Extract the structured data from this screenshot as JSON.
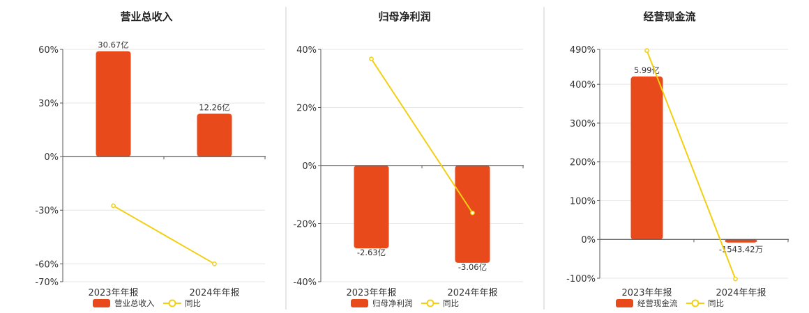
{
  "colors": {
    "bar": "#e84a1b",
    "line": "#f2cf12",
    "grid": "#e6e6e6",
    "axis": "#555555",
    "divider": "#cccccc"
  },
  "chart_data": [
    {
      "type": "bar",
      "title": "营业总收入",
      "categories": [
        "2023年年报",
        "2024年年报"
      ],
      "yticks": [
        "60%",
        "30%",
        "0%",
        "-30%",
        "-60%",
        "-70%"
      ],
      "ylim": [
        -70,
        60
      ],
      "series": [
        {
          "name": "营业总收入",
          "kind": "bar",
          "values": [
            59,
            24
          ],
          "labels": [
            "30.67亿",
            "12.26亿"
          ]
        },
        {
          "name": "同比",
          "kind": "line",
          "values": [
            -27.5,
            -60
          ]
        }
      ]
    },
    {
      "type": "bar",
      "title": "归母净利润",
      "categories": [
        "2023年年报",
        "2024年年报"
      ],
      "yticks": [
        "40%",
        "20%",
        "0%",
        "-20%",
        "-40%"
      ],
      "ylim": [
        -40,
        40
      ],
      "series": [
        {
          "name": "归母净利润",
          "kind": "bar",
          "values": [
            -28.5,
            -33.5
          ],
          "labels": [
            "-2.63亿",
            "-3.06亿"
          ]
        },
        {
          "name": "同比",
          "kind": "line",
          "values": [
            36.7,
            -16.3
          ]
        }
      ]
    },
    {
      "type": "bar",
      "title": "经营现金流",
      "categories": [
        "2023年年报",
        "2024年年报"
      ],
      "yticks": [
        "490%",
        "400%",
        "300%",
        "200%",
        "100%",
        "0%",
        "-100%"
      ],
      "ylim": [
        -100,
        490
      ],
      "series": [
        {
          "name": "经营现金流",
          "kind": "bar",
          "values": [
            420,
            -8
          ],
          "labels": [
            "5.99亿",
            "-1543.42万"
          ]
        },
        {
          "name": "同比",
          "kind": "line",
          "values": [
            487,
            -102
          ]
        }
      ]
    }
  ]
}
